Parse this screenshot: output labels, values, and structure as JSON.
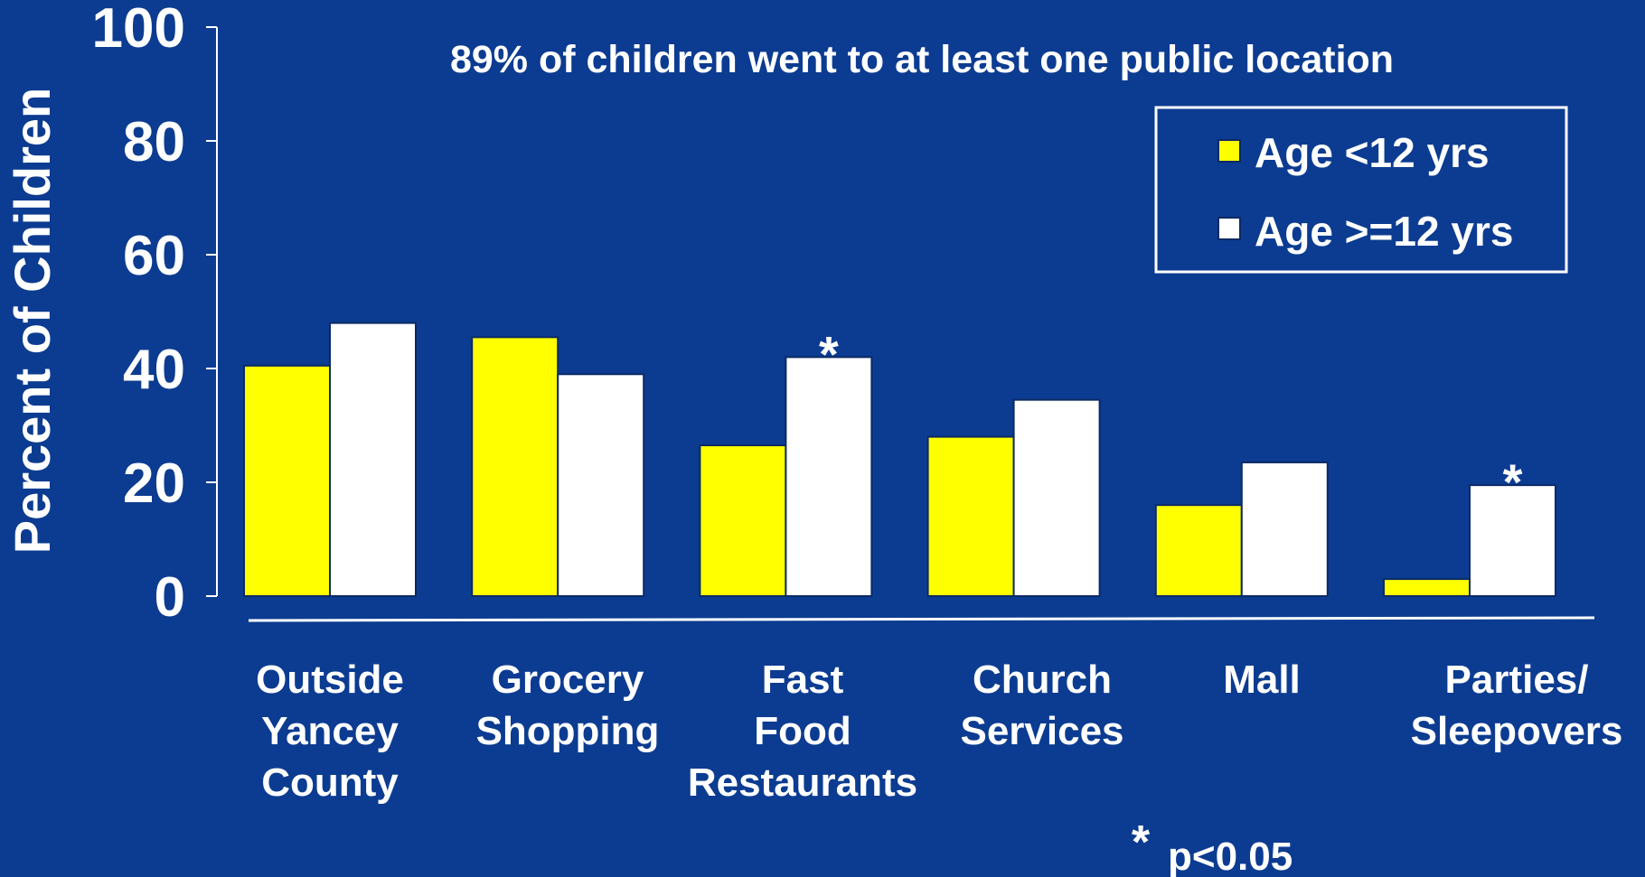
{
  "chart_data": {
    "type": "bar",
    "title": "89% of children went to at least one public location",
    "ylabel": "Percent of Children",
    "xlabel": "",
    "ylim": [
      0,
      100
    ],
    "yticks": [
      0,
      20,
      40,
      60,
      80,
      100
    ],
    "grid": false,
    "legend_position": "top-right",
    "categories": [
      [
        "Outside",
        "Yancey",
        "County"
      ],
      [
        "Grocery",
        "Shopping"
      ],
      [
        "Fast",
        "Food",
        "Restaurants"
      ],
      [
        "Church",
        "Services"
      ],
      [
        "Mall"
      ],
      [
        "Parties/",
        "Sleepovers"
      ]
    ],
    "series": [
      {
        "name": "Age <12 yrs",
        "color": "#ffff00",
        "values": [
          40.5,
          45.5,
          26.5,
          28,
          16,
          3
        ]
      },
      {
        "name": "Age >=12 yrs",
        "color": "#ffffff",
        "values": [
          48,
          39,
          42,
          34.5,
          23.5,
          19.5
        ]
      }
    ],
    "significance": {
      "marker": "*",
      "marked": [
        [
          1,
          2
        ],
        [
          1,
          5
        ]
      ]
    },
    "footnote": {
      "marker": "*",
      "text": "p<0.05"
    }
  }
}
